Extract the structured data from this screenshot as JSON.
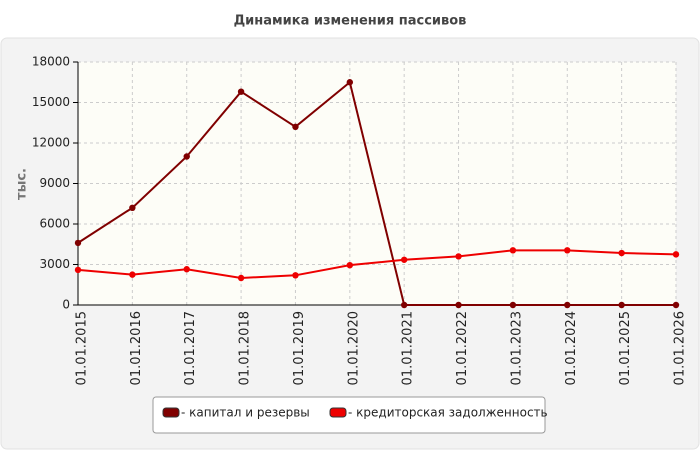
{
  "chart_data": {
    "type": "line",
    "title": "Динамика изменения пассивов",
    "ylabel": "тыс.",
    "categories": [
      "01.01.2015",
      "01.01.2016",
      "01.01.2017",
      "01.01.2018",
      "01.01.2019",
      "01.01.2020",
      "01.01.2021",
      "01.01.2022",
      "01.01.2023",
      "01.01.2024",
      "01.01.2025",
      "01.01.2026"
    ],
    "series": [
      {
        "name": "- капитал и резервы",
        "color": "#800000",
        "values": [
          4600,
          7200,
          11000,
          15800,
          13200,
          16500,
          0,
          0,
          0,
          0,
          0,
          0
        ]
      },
      {
        "name": "- кредиторская задолженность",
        "color": "#ee0000",
        "values": [
          2600,
          2250,
          2650,
          2000,
          2200,
          2950,
          3350,
          3600,
          4050,
          4050,
          3850,
          3750
        ]
      }
    ],
    "ylim": [
      0,
      18000
    ],
    "yticks": [
      0,
      3000,
      6000,
      9000,
      12000,
      15000,
      18000
    ],
    "grid": true
  }
}
